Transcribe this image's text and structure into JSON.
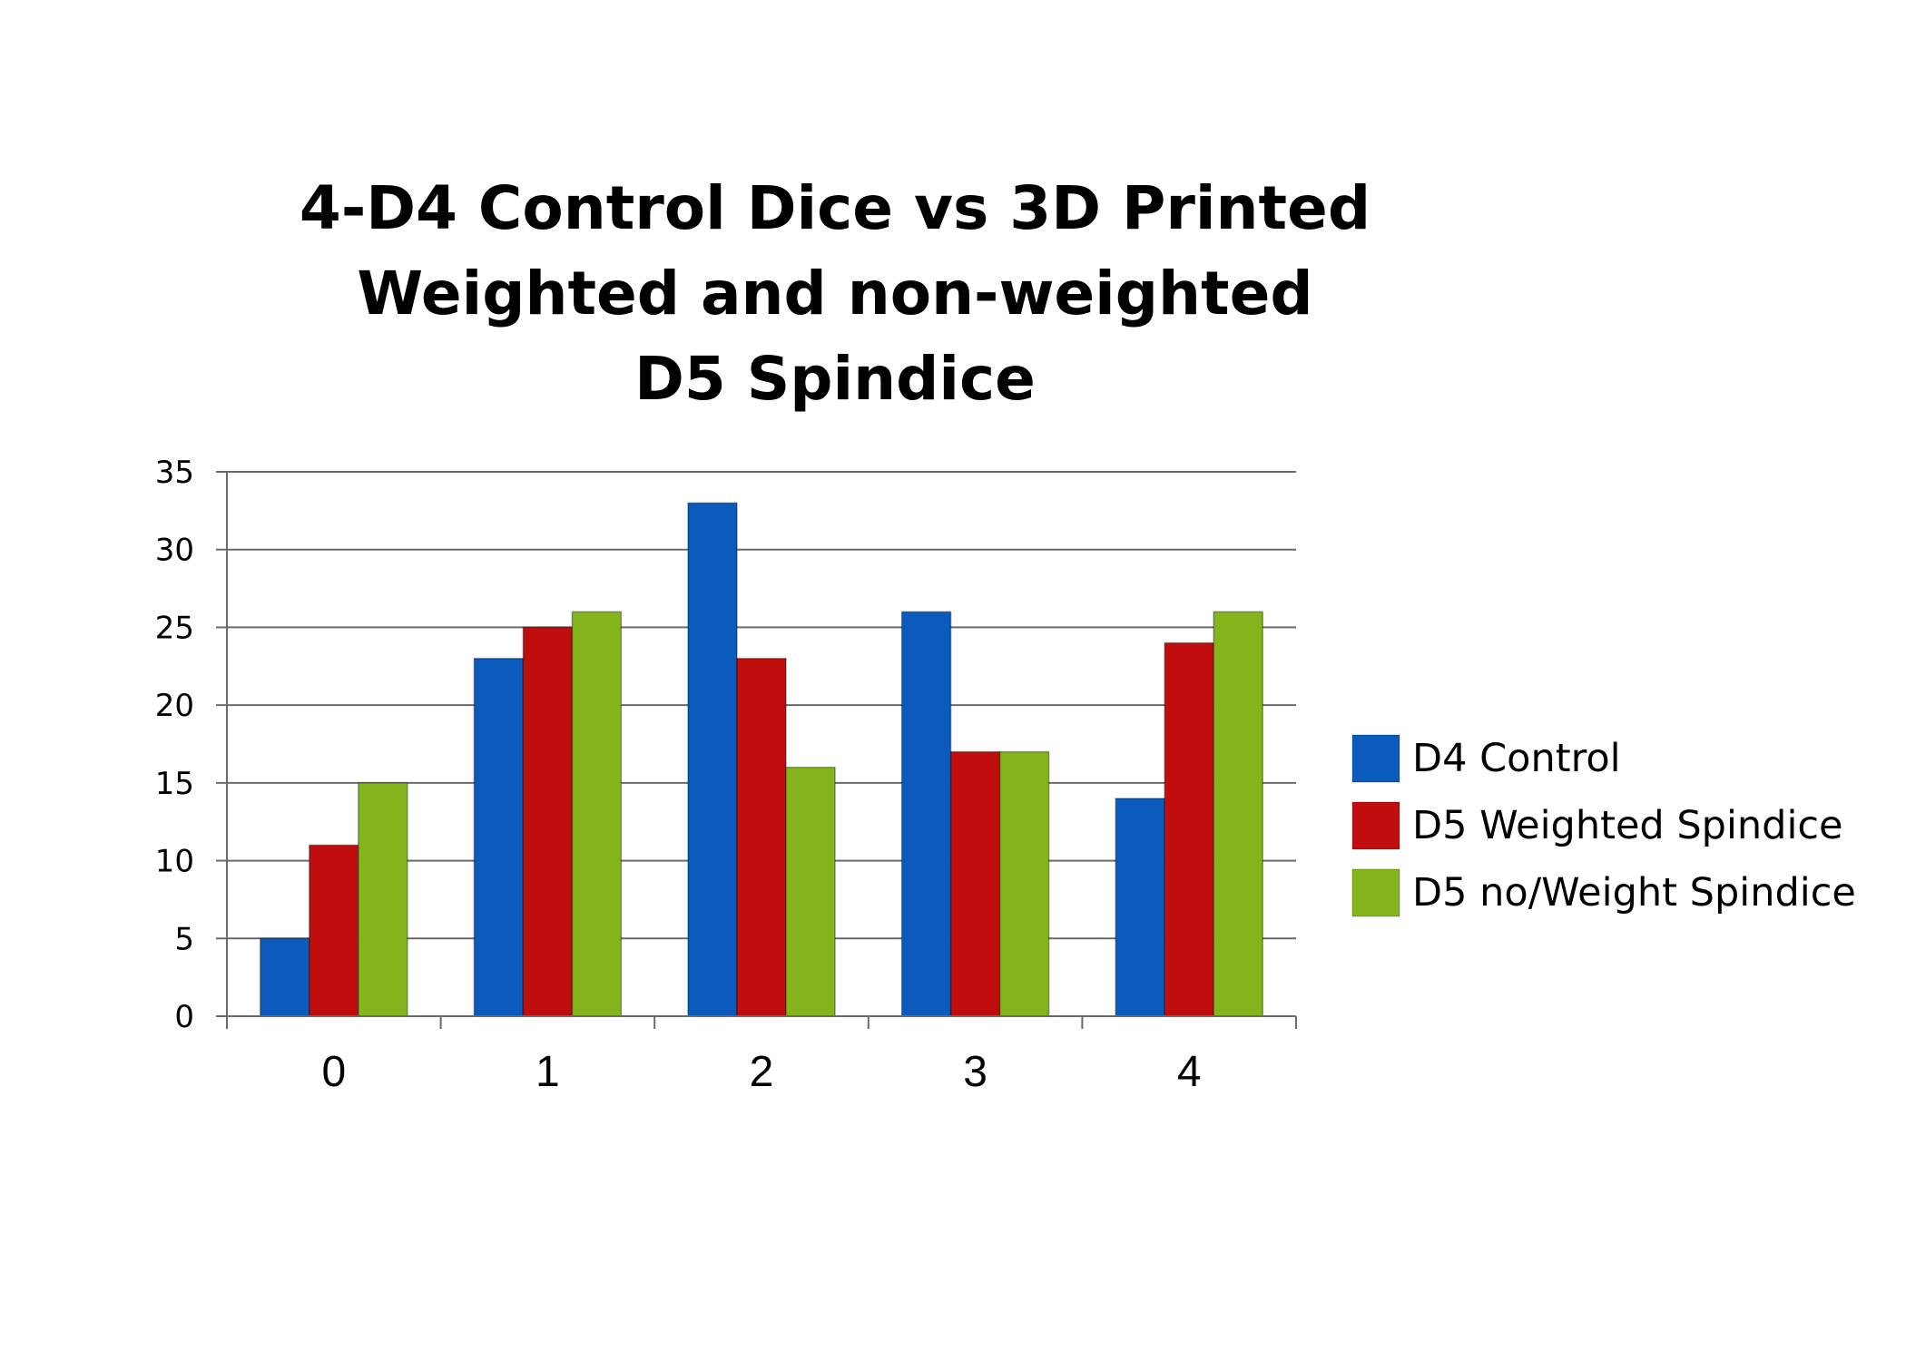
{
  "chart_data": {
    "type": "bar",
    "title_lines": [
      "4-D4 Control Dice vs 3D Printed",
      "Weighted and non-weighted",
      "D5 Spindice"
    ],
    "xlabel": "",
    "ylabel": "",
    "categories": [
      "0",
      "1",
      "2",
      "3",
      "4"
    ],
    "ylim": [
      0,
      35
    ],
    "yticks": [
      "0",
      "5",
      "10",
      "15",
      "20",
      "25",
      "30",
      "35"
    ],
    "grid": true,
    "legend_position": "right",
    "series": [
      {
        "name": "D4 Control",
        "color": "#0b5bbd",
        "values": [
          5,
          23,
          33,
          26,
          14
        ]
      },
      {
        "name": "D5 Weighted Spindice",
        "color": "#c00d0d",
        "values": [
          11,
          25,
          23,
          17,
          24
        ]
      },
      {
        "name": "D5 no/Weight Spindice",
        "color": "#84b51c",
        "values": [
          15,
          26,
          16,
          17,
          26
        ]
      }
    ]
  }
}
